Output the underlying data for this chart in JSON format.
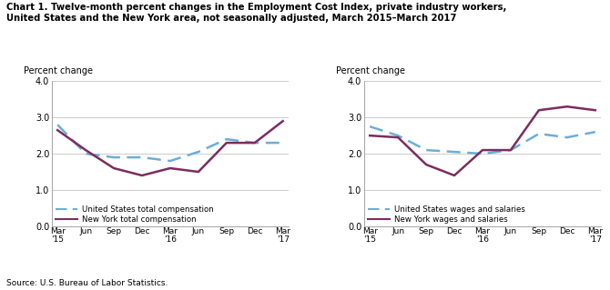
{
  "title_line1": "Chart 1. Twelve-month percent changes in the Employment Cost Index, private industry workers,",
  "title_line2": "United States and the New York area, not seasonally adjusted, March 2015–March 2017",
  "source": "Source: U.S. Bureau of Labor Statistics.",
  "x_labels": [
    "Mar\n'15",
    "Jun",
    "Sep",
    "Dec",
    "Mar\n'16",
    "Jun",
    "Sep",
    "Dec",
    "Mar\n'17"
  ],
  "left": {
    "ylabel": "Percent change",
    "us_total_comp": [
      2.8,
      2.0,
      1.9,
      1.9,
      1.8,
      2.05,
      2.4,
      2.3,
      2.3
    ],
    "ny_total_comp": [
      2.65,
      2.1,
      1.6,
      1.4,
      1.6,
      1.5,
      2.3,
      2.3,
      2.9
    ],
    "us_label": "United States total compensation",
    "ny_label": "New York total compensation"
  },
  "right": {
    "ylabel": "Percent change",
    "us_wages": [
      2.75,
      2.5,
      2.1,
      2.05,
      2.0,
      2.1,
      2.55,
      2.45,
      2.6
    ],
    "ny_wages": [
      2.5,
      2.45,
      1.7,
      1.4,
      2.1,
      2.1,
      3.2,
      3.3,
      3.2
    ],
    "us_label": "United States wages and salaries",
    "ny_label": "New York wages and salaries"
  },
  "ylim": [
    0.0,
    4.0
  ],
  "yticks": [
    0.0,
    1.0,
    2.0,
    3.0,
    4.0
  ],
  "us_color": "#6baed6",
  "ny_color": "#7b2d5e",
  "linewidth": 1.8,
  "background_color": "#ffffff",
  "grid_color": "#cccccc"
}
